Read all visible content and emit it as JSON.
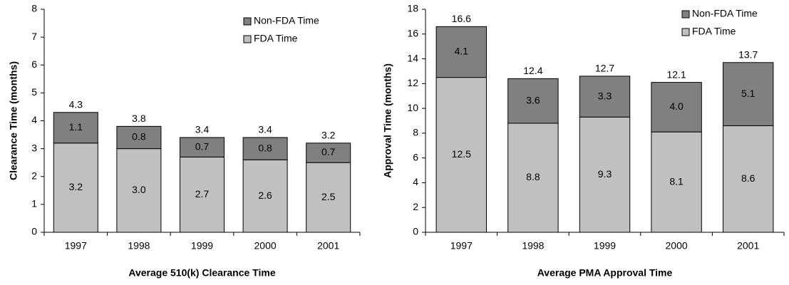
{
  "chart_data": [
    {
      "type": "stacked_bar",
      "title": "Average 510(k) Clearance Time",
      "y_label": "Clearance Time (months)",
      "categories": [
        "1997",
        "1998",
        "1999",
        "2000",
        "2001"
      ],
      "series": [
        {
          "name": "FDA Time",
          "color": "#c0c0c0",
          "values": [
            3.2,
            3.0,
            2.7,
            2.6,
            2.5
          ],
          "value_labels": [
            "3.2",
            "3.0",
            "2.7",
            "2.6",
            "2.5"
          ]
        },
        {
          "name": "Non-FDA Time",
          "color": "#808080",
          "values": [
            1.1,
            0.8,
            0.7,
            0.8,
            0.7
          ],
          "value_labels": [
            "1.1",
            "0.8",
            "0.7",
            "0.8",
            "0.7"
          ]
        }
      ],
      "totals": [
        4.3,
        3.8,
        3.4,
        3.4,
        3.2
      ],
      "ylim": [
        0,
        8
      ],
      "yticks": [
        0,
        1,
        2,
        3,
        4,
        5,
        6,
        7,
        8
      ],
      "grid": false,
      "legend": "top-right"
    },
    {
      "type": "stacked_bar",
      "title": "Average PMA Approval Time",
      "y_label": "Approval Time (months)",
      "categories": [
        "1997",
        "1998",
        "1999",
        "2000",
        "2001"
      ],
      "series": [
        {
          "name": "FDA Time",
          "color": "#c0c0c0",
          "values": [
            12.5,
            8.8,
            9.3,
            8.1,
            8.6
          ],
          "value_labels": [
            "12.5",
            "8.8",
            "9.3",
            "8.1",
            "8.6"
          ]
        },
        {
          "name": "Non-FDA Time",
          "color": "#808080",
          "values": [
            4.1,
            3.6,
            3.3,
            4.0,
            5.1
          ],
          "value_labels": [
            "4.1",
            "3.6",
            "3.3",
            "4.0",
            "5.1"
          ]
        }
      ],
      "totals": [
        16.6,
        12.4,
        12.7,
        12.1,
        13.7
      ],
      "ylim": [
        0,
        18
      ],
      "yticks": [
        0,
        2,
        4,
        6,
        8,
        10,
        12,
        14,
        16,
        18
      ],
      "grid": false,
      "legend": "top-right"
    }
  ]
}
